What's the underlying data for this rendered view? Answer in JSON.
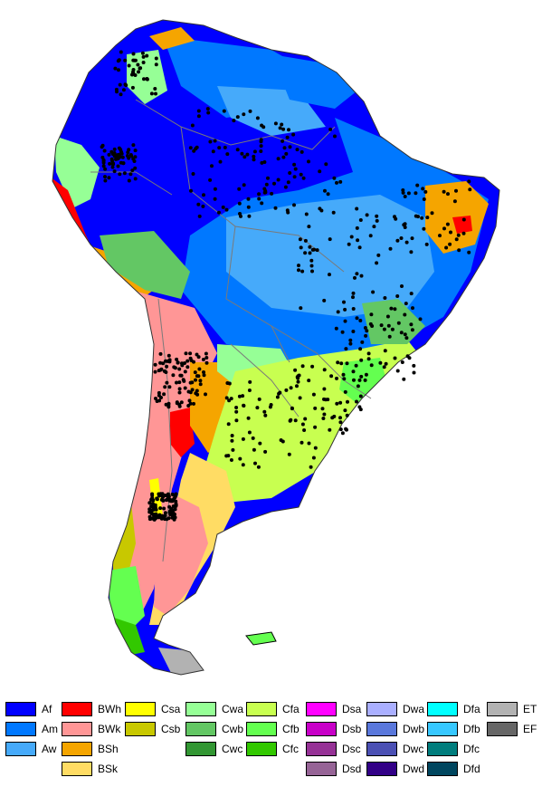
{
  "map": {
    "palette": {
      "Af": "#0000ff",
      "Am": "#0078ff",
      "Aw": "#46aafa",
      "BWh": "#ff0000",
      "BWk": "#ff9696",
      "BSh": "#f5a500",
      "BSk": "#ffdc64",
      "Csa": "#ffff00",
      "Csb": "#c8c800",
      "Cwa": "#96ff96",
      "Cwb": "#63c764",
      "Cwc": "#329633",
      "Cfa": "#c8ff50",
      "Cfb": "#64ff50",
      "Cfc": "#32c800",
      "Dsa": "#ff00ff",
      "Dsb": "#c800c8",
      "Dsc": "#963296",
      "Dsd": "#966496",
      "Dwa": "#aaafff",
      "Dwb": "#5a78dc",
      "Dwc": "#4b50b4",
      "Dwd": "#320087",
      "Dfa": "#00ffff",
      "Dfb": "#37c8ff",
      "Dfc": "#007d7d",
      "Dfd": "#00465f",
      "ET": "#b2b2b2",
      "EF": "#666666"
    },
    "station_color": "#000000",
    "border_color": "#7a7a7a"
  },
  "legend": {
    "columns": [
      [
        "Af",
        "Am",
        "Aw"
      ],
      [
        "BWh",
        "BWk",
        "BSh",
        "BSk"
      ],
      [
        "Csa",
        "Csb"
      ],
      [
        "Cwa",
        "Cwb",
        "Cwc"
      ],
      [
        "Cfa",
        "Cfb",
        "Cfc"
      ],
      [
        "Dsa",
        "Dsb",
        "Dsc",
        "Dsd"
      ],
      [
        "Dwa",
        "Dwb",
        "Dwc",
        "Dwd"
      ],
      [
        "Dfa",
        "Dfb",
        "Dfc",
        "Dfd"
      ],
      [
        "ET",
        "EF"
      ]
    ]
  }
}
